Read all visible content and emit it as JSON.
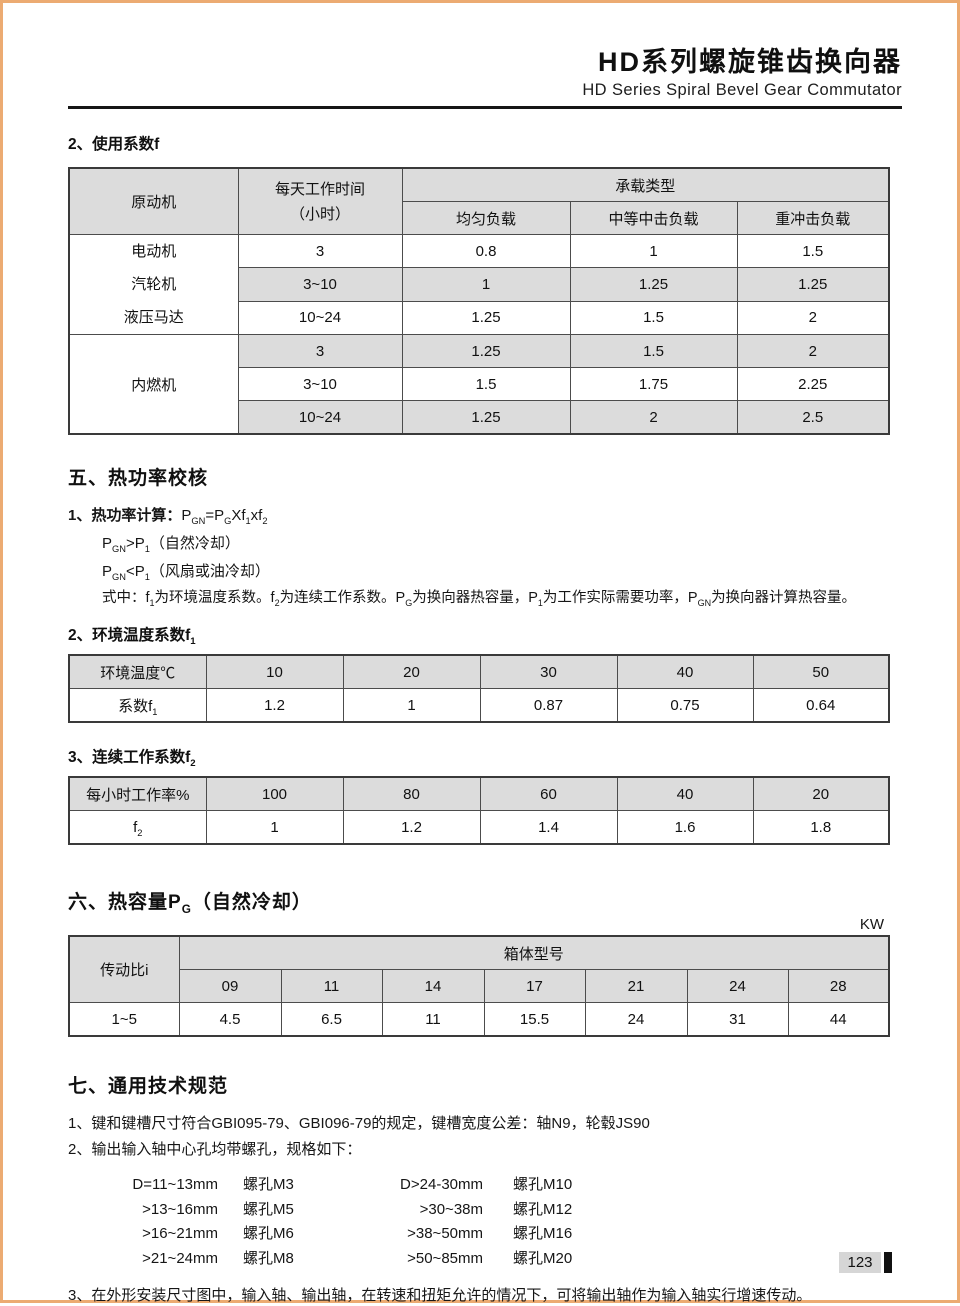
{
  "header": {
    "title_cn": "HD系列螺旋锥齿换向器",
    "title_en": "HD Series Spiral Bevel Gear Commutator"
  },
  "usage_factor": {
    "title": "2、使用系数f",
    "table": {
      "prime_mover_header": "原动机",
      "daily_hours_line1": "每天工作时间",
      "daily_hours_line2": "（小时）",
      "load_type_header": "承载类型",
      "load_columns": [
        "均匀负载",
        "中等中击负载",
        "重冲击负载"
      ],
      "groups": [
        {
          "name_lines": [
            "电动机",
            "汽轮机",
            "液压马达"
          ],
          "rows": [
            [
              "3",
              "0.8",
              "1",
              "1.5"
            ],
            [
              "3~10",
              "1",
              "1.25",
              "1.25"
            ],
            [
              "10~24",
              "1.25",
              "1.5",
              "2"
            ]
          ]
        },
        {
          "name_lines": [
            "内燃机"
          ],
          "rows": [
            [
              "3",
              "1.25",
              "1.5",
              "2"
            ],
            [
              "3~10",
              "1.5",
              "1.75",
              "2.25"
            ],
            [
              "10~24",
              "1.25",
              "2",
              "2.5"
            ]
          ]
        }
      ]
    }
  },
  "thermal_check": {
    "title": "五、热功率校核",
    "calc_label": "1、热功率计算：",
    "formula": [
      {
        "t": "P"
      },
      {
        "s": "GN"
      },
      {
        "t": "=P"
      },
      {
        "s": "G"
      },
      {
        "t": "Xf"
      },
      {
        "s": "1"
      },
      {
        "t": "xf"
      },
      {
        "s": "2"
      }
    ],
    "condition_natural": [
      {
        "t": "P"
      },
      {
        "s": "GN"
      },
      {
        "t": ">P"
      },
      {
        "s": "1"
      },
      {
        "t": "（自然冷却）"
      }
    ],
    "condition_fan": [
      {
        "t": "P"
      },
      {
        "s": "GN"
      },
      {
        "t": "<P"
      },
      {
        "s": "1"
      },
      {
        "t": "（风扇或油冷却）"
      }
    ],
    "note": [
      {
        "t": "式中：f"
      },
      {
        "s": "1"
      },
      {
        "t": "为环境温度系数。f"
      },
      {
        "s": "2"
      },
      {
        "t": "为连续工作系数。P"
      },
      {
        "s": "G"
      },
      {
        "t": "为换向器热容量，P"
      },
      {
        "s": "1"
      },
      {
        "t": "为工作实际需要功率，P"
      },
      {
        "s": "GN"
      },
      {
        "t": "为换向器计算热容量。"
      }
    ]
  },
  "ambient_temp": {
    "title": [
      {
        "t": "2、环境温度系数f"
      },
      {
        "s": "1"
      }
    ],
    "row1_label": "环境温度℃",
    "row1_values": [
      "10",
      "20",
      "30",
      "40",
      "50"
    ],
    "row2_label": [
      {
        "t": "系数f"
      },
      {
        "s": "1"
      }
    ],
    "row2_values": [
      "1.2",
      "1",
      "0.87",
      "0.75",
      "0.64"
    ]
  },
  "duty_cycle": {
    "title": [
      {
        "t": "3、连续工作系数f"
      },
      {
        "s": "2"
      }
    ],
    "row1_label": "每小时工作率%",
    "row1_values": [
      "100",
      "80",
      "60",
      "40",
      "20"
    ],
    "row2_label": [
      {
        "t": "f"
      },
      {
        "s": "2"
      }
    ],
    "row2_values": [
      "1",
      "1.2",
      "1.4",
      "1.6",
      "1.8"
    ]
  },
  "heat_capacity": {
    "title": [
      {
        "t": "六、热容量P"
      },
      {
        "s": "G"
      },
      {
        "t": "（自然冷却）"
      }
    ],
    "unit": "KW",
    "ratio_header": "传动比i",
    "housing_header": "箱体型号",
    "models": [
      "09",
      "11",
      "14",
      "17",
      "21",
      "24",
      "28"
    ],
    "ratio_value": "1~5",
    "values": [
      "4.5",
      "6.5",
      "11",
      "15.5",
      "24",
      "31",
      "44"
    ]
  },
  "general_spec": {
    "title": "七、通用技术规范",
    "item1": "1、键和键槽尺寸符合GBI095-79、GBI096-79的规定，键槽宽度公差：轴N9，轮毂JS90",
    "item2": "2、输出输入轴中心孔均带螺孔，规格如下：",
    "hole_specs": [
      {
        "d_left": "D=11~13mm",
        "hole_left": "螺孔M3",
        "d_right": "D>24-30mm",
        "hole_right": "螺孔M10"
      },
      {
        "d_left": ">13~16mm",
        "hole_left": "螺孔M5",
        "d_right": ">30~38m",
        "hole_right": "螺孔M12"
      },
      {
        "d_left": ">16~21mm",
        "hole_left": "螺孔M6",
        "d_right": ">38~50mm",
        "hole_right": "螺孔M16"
      },
      {
        "d_left": ">21~24mm",
        "hole_left": "螺孔M8",
        "d_right": ">50~85mm",
        "hole_right": "螺孔M20"
      }
    ],
    "item3": "3、在外形安装尺寸图中，输入轴、输出轴，在转速和扭矩允许的情况下，可将输出轴作为输入轴实行增速传动。"
  },
  "footer": {
    "page_number": "123"
  },
  "colors": {
    "page_border": "#ecab72",
    "rule": "#161616",
    "table_header_bg": "#dcdcdc",
    "table_alt_row_bg": "#dcdcdc",
    "footer_box_bg": "#d6d6d6",
    "footer_bar": "#111111"
  }
}
